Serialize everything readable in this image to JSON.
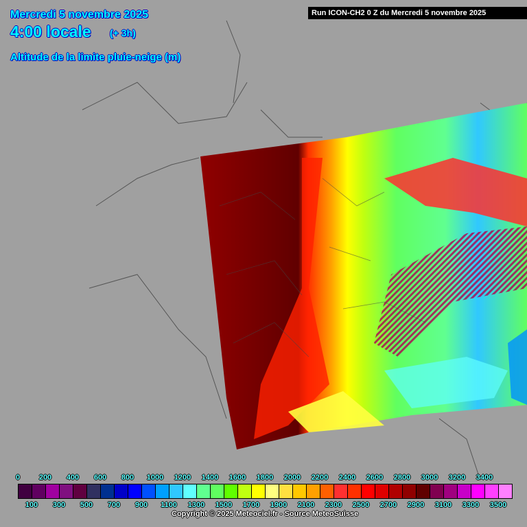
{
  "header": {
    "date": "Mercredi 5 novembre 2025",
    "hour": "4:00 locale",
    "offset": "(+ 3h)",
    "parameter": "Altitude de la limite pluie-neige (m)",
    "run": "Run ICON-CH2 0 Z du Mercredi 5 novembre 2025"
  },
  "legend": {
    "colors": [
      "#400040",
      "#600060",
      "#a000a0",
      "#801080",
      "#600040",
      "#303060",
      "#003090",
      "#0000c8",
      "#0000ff",
      "#0050ff",
      "#00a0ff",
      "#30c8ff",
      "#60ffff",
      "#60ff90",
      "#60ff60",
      "#60ff00",
      "#c0ff10",
      "#ffff00",
      "#ffff80",
      "#ffe040",
      "#ffc800",
      "#ffa000",
      "#ff6000",
      "#ff3030",
      "#ff3000",
      "#ff0000",
      "#e00000",
      "#b00000",
      "#900000",
      "#600000",
      "#800050",
      "#a00080",
      "#c800c8",
      "#ff00ff",
      "#ff40ff",
      "#ff80ff"
    ],
    "top_labels": [
      "0",
      "200",
      "400",
      "600",
      "800",
      "1000",
      "1200",
      "1400",
      "1600",
      "1800",
      "2000",
      "2200",
      "2400",
      "2600",
      "2800",
      "3000",
      "3200",
      "3400"
    ],
    "bottom_labels": [
      "100",
      "300",
      "500",
      "700",
      "900",
      "1100",
      "1300",
      "1500",
      "1700",
      "1900",
      "2100",
      "2300",
      "2500",
      "2700",
      "2900",
      "3100",
      "3300",
      "3500"
    ]
  },
  "footer": {
    "copyright": "Copyright © 2025 Meteociel.fr - Source MeteoSuisse"
  }
}
